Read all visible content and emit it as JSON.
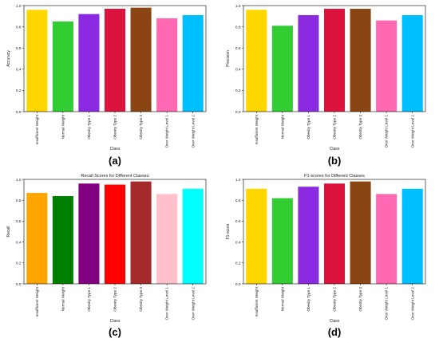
{
  "chart_data": [
    {
      "type": "bar",
      "panel_label": "(a)",
      "title": "",
      "xlabel": "Class",
      "ylabel": "Accuracy",
      "ylim": [
        0,
        1.0
      ],
      "yticks": [
        "0.0",
        "0.2",
        "0.4",
        "0.6",
        "0.8",
        "1.0"
      ],
      "categories": [
        "Insufficient Weight",
        "Normal Weight",
        "Obesity Type 1",
        "Obesity Type 2",
        "Obesity Type 3",
        "Over Weight Level 1",
        "Over Weight Level 2"
      ],
      "values": [
        0.96,
        0.85,
        0.92,
        0.97,
        0.98,
        0.88,
        0.91
      ],
      "colors": [
        "#FFD700",
        "#32CD32",
        "#8A2BE2",
        "#DC143C",
        "#8B4513",
        "#FF69B4",
        "#00BFFF"
      ],
      "grid": false
    },
    {
      "type": "bar",
      "panel_label": "(b)",
      "title": "",
      "xlabel": "Class",
      "ylabel": "Precision",
      "ylim": [
        0,
        1.0
      ],
      "yticks": [
        "0.0",
        "0.2",
        "0.4",
        "0.6",
        "0.8",
        "1.0"
      ],
      "categories": [
        "Insufficient Weight",
        "Normal Weight",
        "Obesity Type 1",
        "Obesity Type 2",
        "Obesity Type 3",
        "Over Weight Level 1",
        "Over Weight Level 2"
      ],
      "values": [
        0.96,
        0.81,
        0.91,
        0.97,
        0.97,
        0.86,
        0.91
      ],
      "colors": [
        "#FFD700",
        "#32CD32",
        "#8A2BE2",
        "#DC143C",
        "#8B4513",
        "#FF69B4",
        "#00BFFF"
      ],
      "grid": false
    },
    {
      "type": "bar",
      "panel_label": "(c)",
      "title": "Recall Scores for Different Classes",
      "xlabel": "Class",
      "ylabel": "Recall",
      "ylim": [
        0,
        1.0
      ],
      "yticks": [
        "0.0",
        "0.2",
        "0.4",
        "0.6",
        "0.8",
        "1.0"
      ],
      "categories": [
        "Insufficient Weight",
        "Normal Weight",
        "Obesity Type 1",
        "Obesity Type 2",
        "Obesity Type 3",
        "Over Weight Level 1",
        "Over Weight Level 2"
      ],
      "values": [
        0.87,
        0.84,
        0.96,
        0.95,
        0.98,
        0.86,
        0.91
      ],
      "colors": [
        "#FFA500",
        "#008000",
        "#800080",
        "#FF0000",
        "#A52A2A",
        "#FFC0CB",
        "#00FFFF"
      ],
      "grid": false
    },
    {
      "type": "bar",
      "panel_label": "(d)",
      "title": "F1-scores for Different Classes",
      "xlabel": "Class",
      "ylabel": "F1-score",
      "ylim": [
        0,
        1.0
      ],
      "yticks": [
        "0.0",
        "0.2",
        "0.4",
        "0.6",
        "0.8",
        "1.0"
      ],
      "categories": [
        "Insufficient Weight",
        "Normal Weight",
        "Obesity Type 1",
        "Obesity Type 2",
        "Obesity Type 3",
        "Over Weight Level 1",
        "Over Weight Level 2"
      ],
      "values": [
        0.91,
        0.82,
        0.93,
        0.96,
        0.98,
        0.86,
        0.91
      ],
      "colors": [
        "#FFD700",
        "#32CD32",
        "#8A2BE2",
        "#DC143C",
        "#8B4513",
        "#FF69B4",
        "#00BFFF"
      ],
      "grid": false
    }
  ]
}
